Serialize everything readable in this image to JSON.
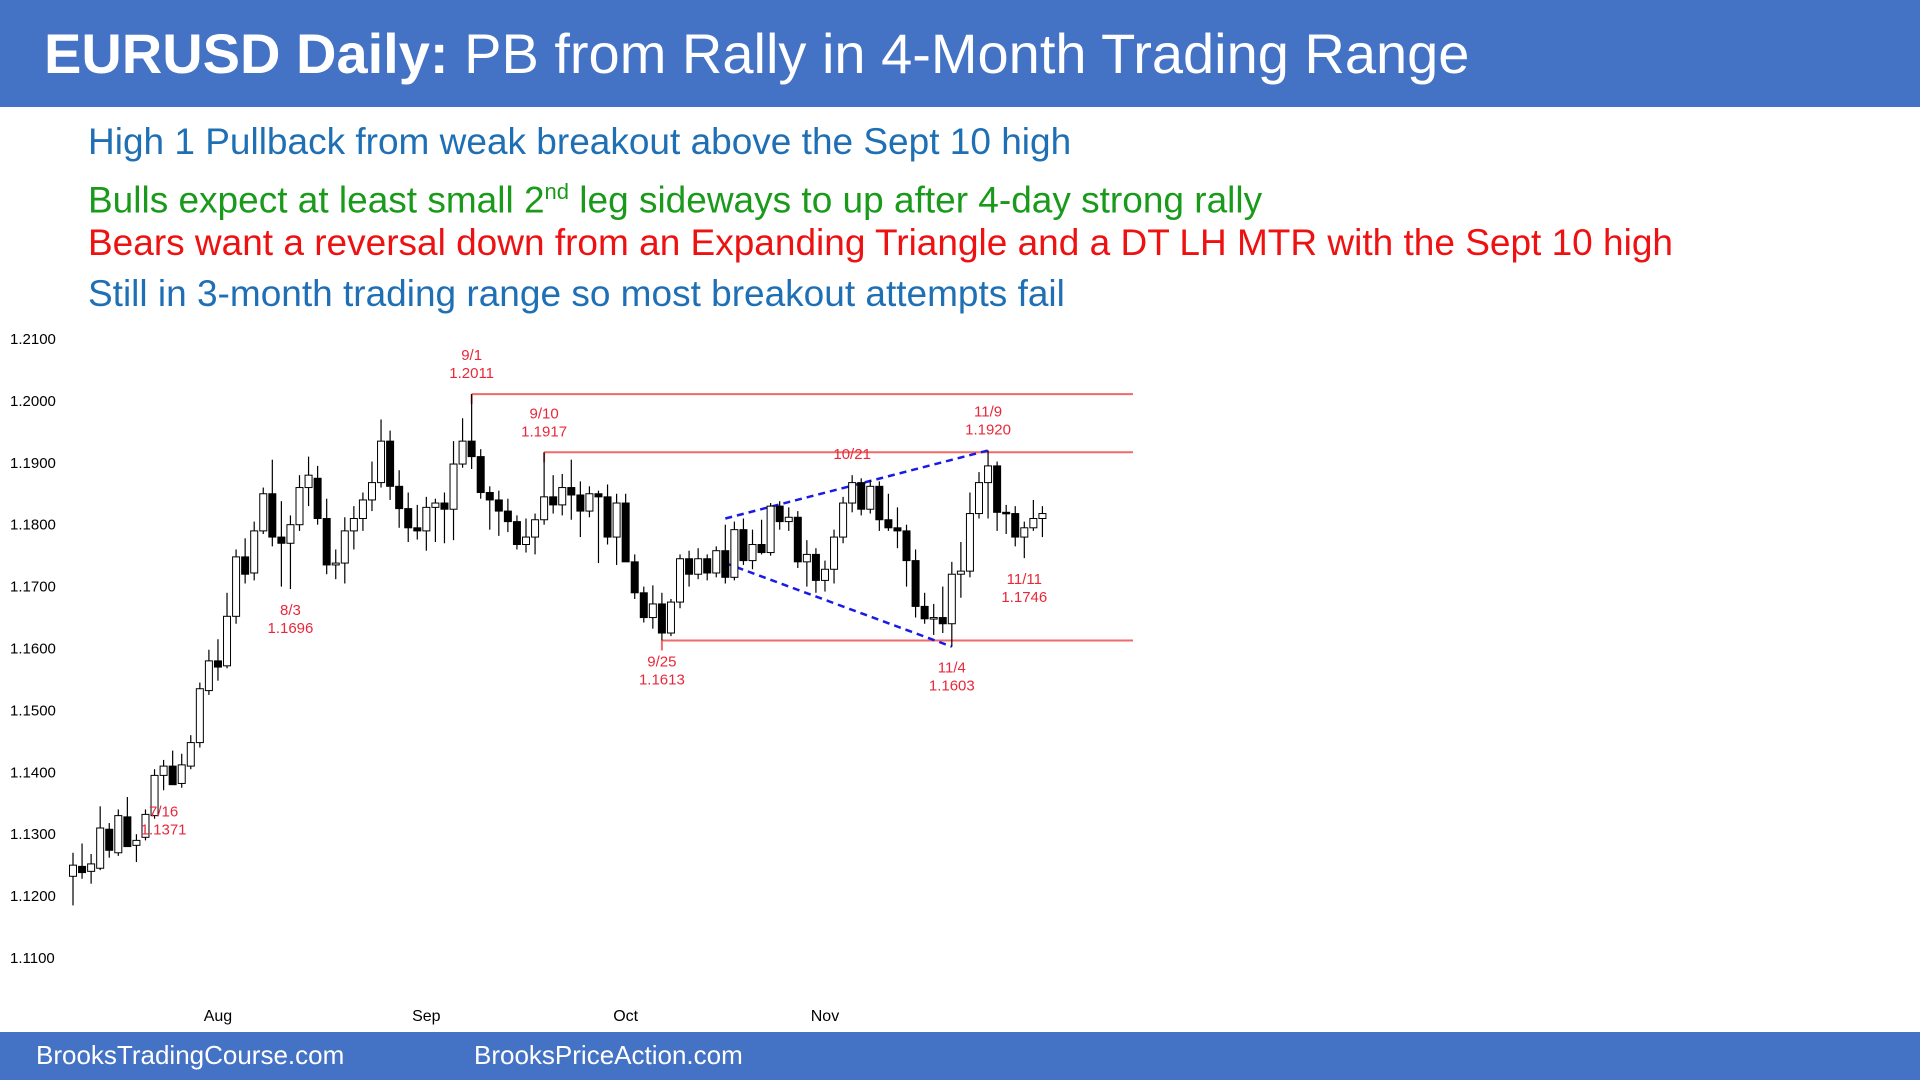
{
  "title": {
    "bold": "EURUSD Daily:",
    "rest": " PB from Rally in 4-Month Trading Range"
  },
  "notes": [
    {
      "pre": "High 1 Pullback from weak breakout above the Sept 10 high",
      "sup": "",
      "post": "",
      "color": "#1f6fb5"
    },
    {
      "pre": "Bulls expect at least small 2",
      "sup": "nd",
      "post": " leg sideways to up after 4-day strong rally",
      "color": "#1a9a1a"
    },
    {
      "pre": "Bears want a reversal down from an Expanding Triangle and a DT LH MTR with the Sept 10 high",
      "sup": "",
      "post": "",
      "color": "#ee1111"
    },
    {
      "pre": "Still in 3-month trading range so most breakout attempts fail",
      "sup": "",
      "post": "",
      "color": "#1f6fb5"
    }
  ],
  "footer": {
    "left": "BrooksTradingCourse.com",
    "right": "BrooksPriceAction.com"
  },
  "chart_data": {
    "type": "candlestick",
    "y_ticks": [
      "1.1100",
      "1.1200",
      "1.1300",
      "1.1400",
      "1.1500",
      "1.1600",
      "1.1700",
      "1.1800",
      "1.1900",
      "1.2000",
      "1.2100"
    ],
    "ylim": [
      1.11,
      1.21
    ],
    "x_ticks": [
      {
        "label": "Aug",
        "index": 16
      },
      {
        "label": "Sep",
        "index": 39
      },
      {
        "label": "Oct",
        "index": 61
      },
      {
        "label": "Nov",
        "index": 83
      }
    ],
    "candles": [
      [
        1.1232,
        1.127,
        1.1185,
        1.125
      ],
      [
        1.1248,
        1.1285,
        1.1228,
        1.1238
      ],
      [
        1.124,
        1.1268,
        1.122,
        1.1252
      ],
      [
        1.1245,
        1.1345,
        1.1242,
        1.131
      ],
      [
        1.1308,
        1.1318,
        1.1262,
        1.1274
      ],
      [
        1.127,
        1.134,
        1.1265,
        1.133
      ],
      [
        1.1328,
        1.136,
        1.128,
        1.128
      ],
      [
        1.1282,
        1.13,
        1.1255,
        1.129
      ],
      [
        1.1295,
        1.134,
        1.129,
        1.1332
      ],
      [
        1.133,
        1.1405,
        1.1325,
        1.1395
      ],
      [
        1.1395,
        1.142,
        1.1371,
        1.141
      ],
      [
        1.141,
        1.1435,
        1.1385,
        1.138
      ],
      [
        1.1382,
        1.143,
        1.1375,
        1.1412
      ],
      [
        1.141,
        1.146,
        1.1405,
        1.1448
      ],
      [
        1.1448,
        1.1545,
        1.144,
        1.1535
      ],
      [
        1.1532,
        1.1598,
        1.1525,
        1.158
      ],
      [
        1.158,
        1.1615,
        1.1548,
        1.157
      ],
      [
        1.1572,
        1.169,
        1.1568,
        1.1652
      ],
      [
        1.1652,
        1.176,
        1.164,
        1.1748
      ],
      [
        1.1748,
        1.1778,
        1.1705,
        1.172
      ],
      [
        1.1722,
        1.1805,
        1.171,
        1.179
      ],
      [
        1.179,
        1.186,
        1.1785,
        1.185
      ],
      [
        1.185,
        1.1905,
        1.1765,
        1.178
      ],
      [
        1.178,
        1.1838,
        1.17,
        1.177
      ],
      [
        1.177,
        1.1815,
        1.1696,
        1.18
      ],
      [
        1.18,
        1.188,
        1.179,
        1.186
      ],
      [
        1.186,
        1.191,
        1.183,
        1.188
      ],
      [
        1.1875,
        1.1895,
        1.18,
        1.181
      ],
      [
        1.181,
        1.1842,
        1.172,
        1.1735
      ],
      [
        1.1735,
        1.176,
        1.1712,
        1.1738
      ],
      [
        1.1738,
        1.1812,
        1.1705,
        1.179
      ],
      [
        1.179,
        1.183,
        1.176,
        1.181
      ],
      [
        1.181,
        1.1852,
        1.179,
        1.184
      ],
      [
        1.184,
        1.1902,
        1.1822,
        1.1868
      ],
      [
        1.1868,
        1.197,
        1.186,
        1.1935
      ],
      [
        1.1935,
        1.1952,
        1.184,
        1.1862
      ],
      [
        1.1862,
        1.1888,
        1.1795,
        1.1826
      ],
      [
        1.1826,
        1.1852,
        1.1772,
        1.1795
      ],
      [
        1.1795,
        1.1832,
        1.1776,
        1.179
      ],
      [
        1.179,
        1.1845,
        1.1758,
        1.1828
      ],
      [
        1.1828,
        1.1842,
        1.1772,
        1.1835
      ],
      [
        1.1835,
        1.1852,
        1.177,
        1.1825
      ],
      [
        1.1825,
        1.1935,
        1.1775,
        1.1898
      ],
      [
        1.1898,
        1.1972,
        1.1892,
        1.1935
      ],
      [
        1.1935,
        1.2011,
        1.189,
        1.191
      ],
      [
        1.191,
        1.1922,
        1.1842,
        1.1852
      ],
      [
        1.1852,
        1.1862,
        1.1792,
        1.184
      ],
      [
        1.184,
        1.1855,
        1.1782,
        1.1822
      ],
      [
        1.1822,
        1.1842,
        1.1788,
        1.1805
      ],
      [
        1.1805,
        1.1815,
        1.176,
        1.1768
      ],
      [
        1.1768,
        1.181,
        1.1755,
        1.178
      ],
      [
        1.178,
        1.1818,
        1.1752,
        1.1808
      ],
      [
        1.1808,
        1.1917,
        1.18,
        1.1845
      ],
      [
        1.1845,
        1.188,
        1.1818,
        1.1832
      ],
      [
        1.1832,
        1.1882,
        1.1815,
        1.186
      ],
      [
        1.186,
        1.1905,
        1.1808,
        1.1848
      ],
      [
        1.1848,
        1.187,
        1.178,
        1.1822
      ],
      [
        1.1822,
        1.1862,
        1.1812,
        1.185
      ],
      [
        1.185,
        1.1855,
        1.1738,
        1.1845
      ],
      [
        1.1845,
        1.1865,
        1.1768,
        1.178
      ],
      [
        1.178,
        1.185,
        1.1735,
        1.1835
      ],
      [
        1.1835,
        1.185,
        1.174,
        1.174
      ],
      [
        1.174,
        1.1752,
        1.168,
        1.169
      ],
      [
        1.169,
        1.17,
        1.1642,
        1.165
      ],
      [
        1.165,
        1.1702,
        1.1632,
        1.1672
      ],
      [
        1.1672,
        1.169,
        1.1613,
        1.1625
      ],
      [
        1.1625,
        1.168,
        1.162,
        1.1675
      ],
      [
        1.1675,
        1.1752,
        1.1665,
        1.1745
      ],
      [
        1.1745,
        1.1758,
        1.17,
        1.172
      ],
      [
        1.172,
        1.1762,
        1.1712,
        1.1745
      ],
      [
        1.1745,
        1.1752,
        1.171,
        1.1722
      ],
      [
        1.1722,
        1.1765,
        1.1715,
        1.1758
      ],
      [
        1.1758,
        1.18,
        1.1705,
        1.1715
      ],
      [
        1.1715,
        1.1805,
        1.171,
        1.1792
      ],
      [
        1.1792,
        1.181,
        1.1735,
        1.1742
      ],
      [
        1.1742,
        1.1792,
        1.1728,
        1.1768
      ],
      [
        1.1768,
        1.1808,
        1.1752,
        1.1755
      ],
      [
        1.1755,
        1.1835,
        1.175,
        1.183
      ],
      [
        1.183,
        1.1838,
        1.1792,
        1.1805
      ],
      [
        1.1805,
        1.1828,
        1.179,
        1.1812
      ],
      [
        1.1812,
        1.1822,
        1.173,
        1.174
      ],
      [
        1.174,
        1.1775,
        1.17,
        1.1752
      ],
      [
        1.1752,
        1.1762,
        1.169,
        1.171
      ],
      [
        1.171,
        1.1742,
        1.1692,
        1.1728
      ],
      [
        1.1728,
        1.1792,
        1.1705,
        1.178
      ],
      [
        1.178,
        1.1845,
        1.177,
        1.1835
      ],
      [
        1.1835,
        1.188,
        1.182,
        1.1868
      ],
      [
        1.1868,
        1.1875,
        1.1815,
        1.1825
      ],
      [
        1.1825,
        1.1872,
        1.1818,
        1.1862
      ],
      [
        1.1862,
        1.187,
        1.179,
        1.1808
      ],
      [
        1.1808,
        1.185,
        1.179,
        1.1795
      ],
      [
        1.1795,
        1.1828,
        1.1762,
        1.179
      ],
      [
        1.179,
        1.18,
        1.17,
        1.1742
      ],
      [
        1.1742,
        1.176,
        1.165,
        1.1668
      ],
      [
        1.1668,
        1.169,
        1.164,
        1.1648
      ],
      [
        1.1648,
        1.1672,
        1.1622,
        1.165
      ],
      [
        1.165,
        1.17,
        1.1625,
        1.164
      ],
      [
        1.164,
        1.174,
        1.1603,
        1.172
      ],
      [
        1.172,
        1.1772,
        1.1682,
        1.1725
      ],
      [
        1.1725,
        1.1852,
        1.1715,
        1.1818
      ],
      [
        1.1818,
        1.1885,
        1.181,
        1.1868
      ],
      [
        1.1868,
        1.192,
        1.181,
        1.1895
      ],
      [
        1.1895,
        1.1902,
        1.179,
        1.182
      ],
      [
        1.182,
        1.1832,
        1.1785,
        1.1818
      ],
      [
        1.1818,
        1.183,
        1.1765,
        1.178
      ],
      [
        1.178,
        1.1805,
        1.1746,
        1.1795
      ],
      [
        1.1795,
        1.184,
        1.179,
        1.181
      ],
      [
        1.181,
        1.183,
        1.178,
        1.1818
      ]
    ],
    "annotations": [
      {
        "date": "7/16",
        "price": "1.1371",
        "index": 10,
        "y": 1.1371,
        "pos": "below"
      },
      {
        "date": "8/3",
        "price": "1.1696",
        "index": 24,
        "y": 1.1696,
        "pos": "below"
      },
      {
        "date": "9/1",
        "price": "1.2011",
        "index": 44,
        "y": 1.2011,
        "pos": "above"
      },
      {
        "date": "9/10",
        "price": "1.1917",
        "index": 52,
        "y": 1.1917,
        "pos": "above"
      },
      {
        "date": "10/21",
        "price": "",
        "index": 86,
        "y": 1.188,
        "pos": "above"
      },
      {
        "date": "9/25",
        "price": "1.1613",
        "index": 65,
        "y": 1.1613,
        "pos": "below"
      },
      {
        "date": "11/4",
        "price": "1.1603",
        "index": 97,
        "y": 1.1603,
        "pos": "below"
      },
      {
        "date": "11/9",
        "price": "1.1920",
        "index": 101,
        "y": 1.192,
        "pos": "above"
      },
      {
        "date": "11/11",
        "price": "1.1746",
        "index": 105,
        "y": 1.1746,
        "pos": "below"
      }
    ],
    "hlines": [
      {
        "y": 1.2011,
        "from": 44,
        "to": 117
      },
      {
        "y": 1.1917,
        "from": 52,
        "to": 117
      },
      {
        "y": 1.1613,
        "from": 65,
        "to": 117
      }
    ],
    "trendlines": [
      {
        "from": [
          72,
          1.181
        ],
        "to": [
          101,
          1.192
        ]
      },
      {
        "from": [
          72,
          1.1738
        ],
        "to": [
          97,
          1.1603
        ]
      }
    ],
    "colors": {
      "label": "#e8283a",
      "range_line": "#f06a6a",
      "trend_line": "#1a1ae6",
      "candle": "#000000"
    }
  }
}
